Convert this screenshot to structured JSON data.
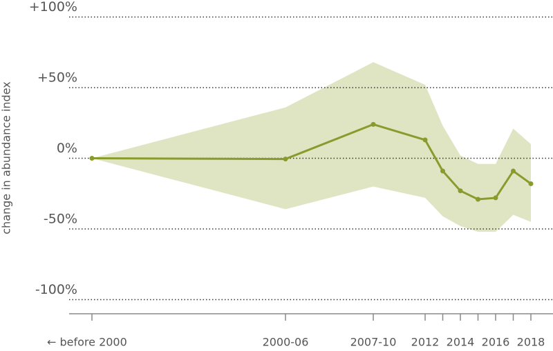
{
  "chart_data": {
    "type": "line",
    "y_label": "change in abundance index",
    "categories": [
      "←  before 2000",
      "2000-06",
      "2007-10",
      "2012",
      null,
      "2014",
      null,
      "2016",
      null,
      "2018"
    ],
    "series": [
      {
        "color": "#8a9a2c",
        "values": [
          0,
          -0.5,
          24,
          13,
          -9,
          -23,
          -29,
          -28,
          -9,
          -18
        ]
      }
    ],
    "band": {
      "color": "#dfe5c3",
      "upper": [
        0,
        36,
        68,
        52,
        23,
        2,
        -4,
        -4,
        21,
        10
      ],
      "lower": [
        0,
        -36,
        -20,
        -28,
        -41,
        -48,
        -52,
        -52,
        -40,
        -45
      ]
    },
    "ylim": [
      -110,
      112
    ],
    "yticks": [
      {
        "value": 100,
        "label": "+100%"
      },
      {
        "value": 50,
        "label": "+50%"
      },
      {
        "value": 0,
        "label": "0%"
      },
      {
        "value": -50,
        "label": "-50%"
      },
      {
        "value": -100,
        "label": "-100%"
      }
    ],
    "grid": true
  }
}
